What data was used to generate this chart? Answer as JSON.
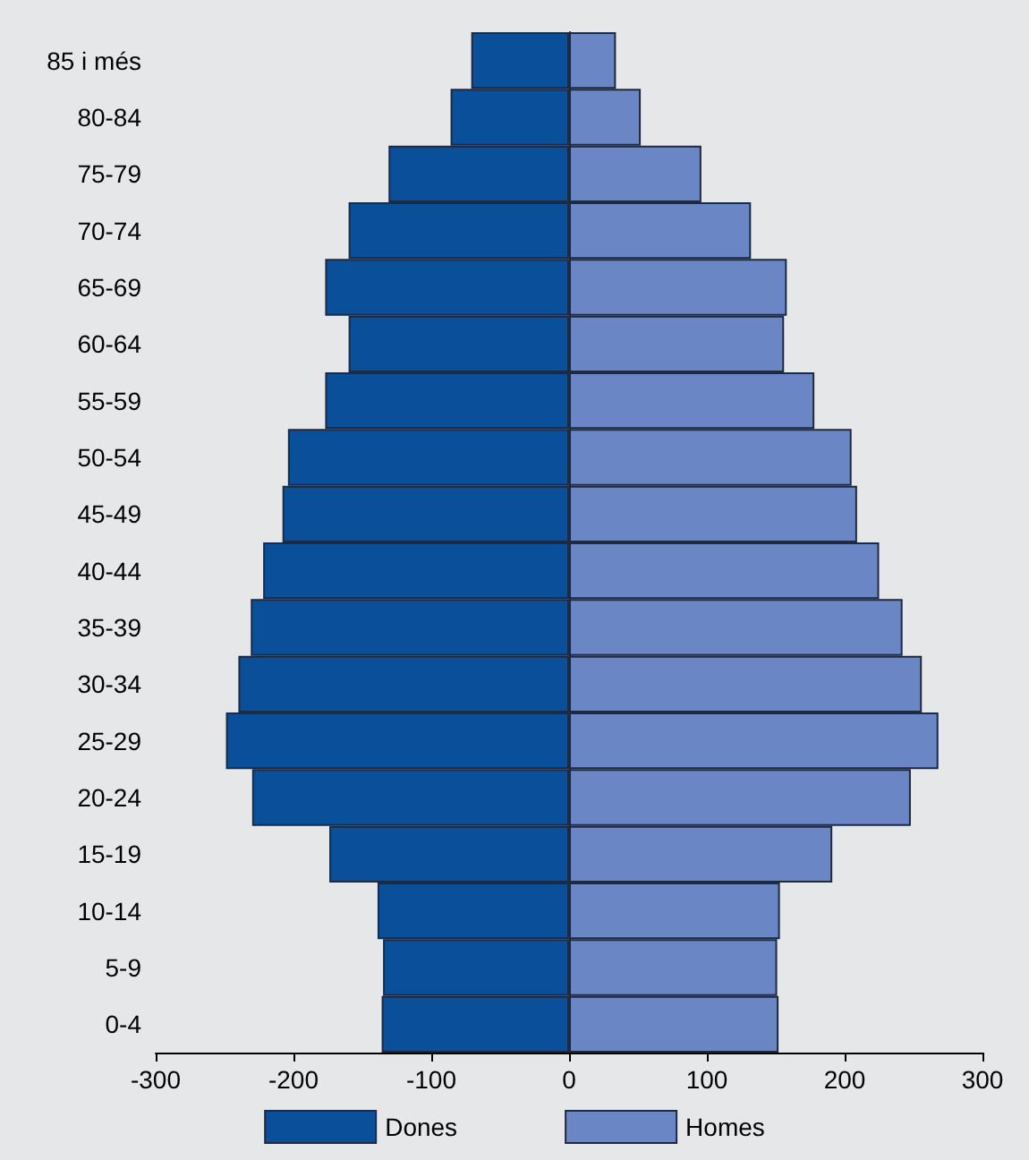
{
  "chart_data": {
    "type": "bar",
    "orientation": "horizontal",
    "stacked": true,
    "categories": [
      "85 i més",
      "80-84",
      "75-79",
      "70-74",
      "65-69",
      "60-64",
      "55-59",
      "50-54",
      "45-49",
      "40-44",
      "35-39",
      "30-34",
      "25-29",
      "20-24",
      "15-19",
      "10-14",
      "5-9",
      "0-4"
    ],
    "series": [
      {
        "name": "Dones",
        "color": "#0a4f9a",
        "values": [
          -71,
          -86,
          -131,
          -160,
          -177,
          -160,
          -177,
          -204,
          -208,
          -222,
          -231,
          -240,
          -249,
          -230,
          -174,
          -139,
          -135,
          -136
        ]
      },
      {
        "name": "Homes",
        "color": "#6a86c4",
        "values": [
          34,
          52,
          96,
          132,
          158,
          156,
          178,
          205,
          209,
          225,
          242,
          256,
          268,
          248,
          191,
          153,
          151,
          152
        ]
      }
    ],
    "xlim": [
      -300,
      300
    ],
    "xticks": [
      -300,
      -200,
      -100,
      0,
      100,
      200,
      300
    ],
    "legend": "bottom"
  }
}
